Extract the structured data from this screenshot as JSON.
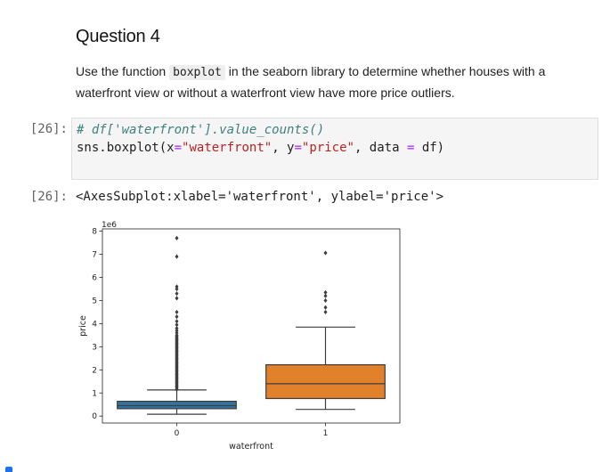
{
  "markdown": {
    "title": "Question 4",
    "text_before": "Use the function ",
    "code_word": "boxplot",
    "text_after": " in the seaborn library to determine whether houses with a waterfront view or without a waterfront view have more price outliers."
  },
  "code_cell": {
    "prompt": "[26]:",
    "comment": "# df['waterfront'].value_counts()",
    "line2": {
      "p1": "sns",
      "p2": ".",
      "p3": "boxplot(x",
      "p4": "=",
      "p5": "\"waterfront\"",
      "p6": ", y",
      "p7": "=",
      "p8": "\"price\"",
      "p9": ", data ",
      "p10": "=",
      "p11": " df)"
    }
  },
  "output": {
    "prompt": "[26]:",
    "text": "<AxesSubplot:xlabel='waterfront', ylabel='price'>"
  },
  "chart_data": {
    "type": "box",
    "xlabel": "waterfront",
    "ylabel": "price",
    "y_scale_label": "1e6",
    "categories": [
      "0",
      "1"
    ],
    "ylim": [
      -0.3,
      8.1
    ],
    "yticks": [
      0,
      1,
      2,
      3,
      4,
      5,
      6,
      7,
      8
    ],
    "boxes": [
      {
        "category": "0",
        "color": "#3274a1",
        "whisker_low": 0.08,
        "q1": 0.32,
        "median": 0.45,
        "q3": 0.64,
        "whisker_high": 1.13,
        "outliers": [
          1.15,
          1.2,
          1.25,
          1.3,
          1.35,
          1.4,
          1.45,
          1.5,
          1.55,
          1.6,
          1.65,
          1.7,
          1.75,
          1.8,
          1.85,
          1.9,
          1.95,
          2.0,
          2.05,
          2.1,
          2.15,
          2.2,
          2.25,
          2.3,
          2.35,
          2.4,
          2.45,
          2.5,
          2.55,
          2.6,
          2.65,
          2.7,
          2.75,
          2.8,
          2.85,
          2.9,
          2.95,
          3.0,
          3.05,
          3.1,
          3.15,
          3.2,
          3.25,
          3.3,
          3.35,
          3.4,
          3.45,
          3.5,
          3.6,
          3.7,
          3.8,
          3.95,
          4.1,
          4.3,
          4.5,
          5.1,
          5.3,
          5.5,
          5.6,
          6.9,
          7.7
        ]
      },
      {
        "category": "1",
        "color": "#e1812c",
        "whisker_low": 0.29,
        "q1": 0.76,
        "median": 1.4,
        "q3": 2.22,
        "whisker_high": 3.85,
        "outliers": [
          4.5,
          4.7,
          5.0,
          5.2,
          5.35,
          7.06
        ]
      }
    ]
  }
}
